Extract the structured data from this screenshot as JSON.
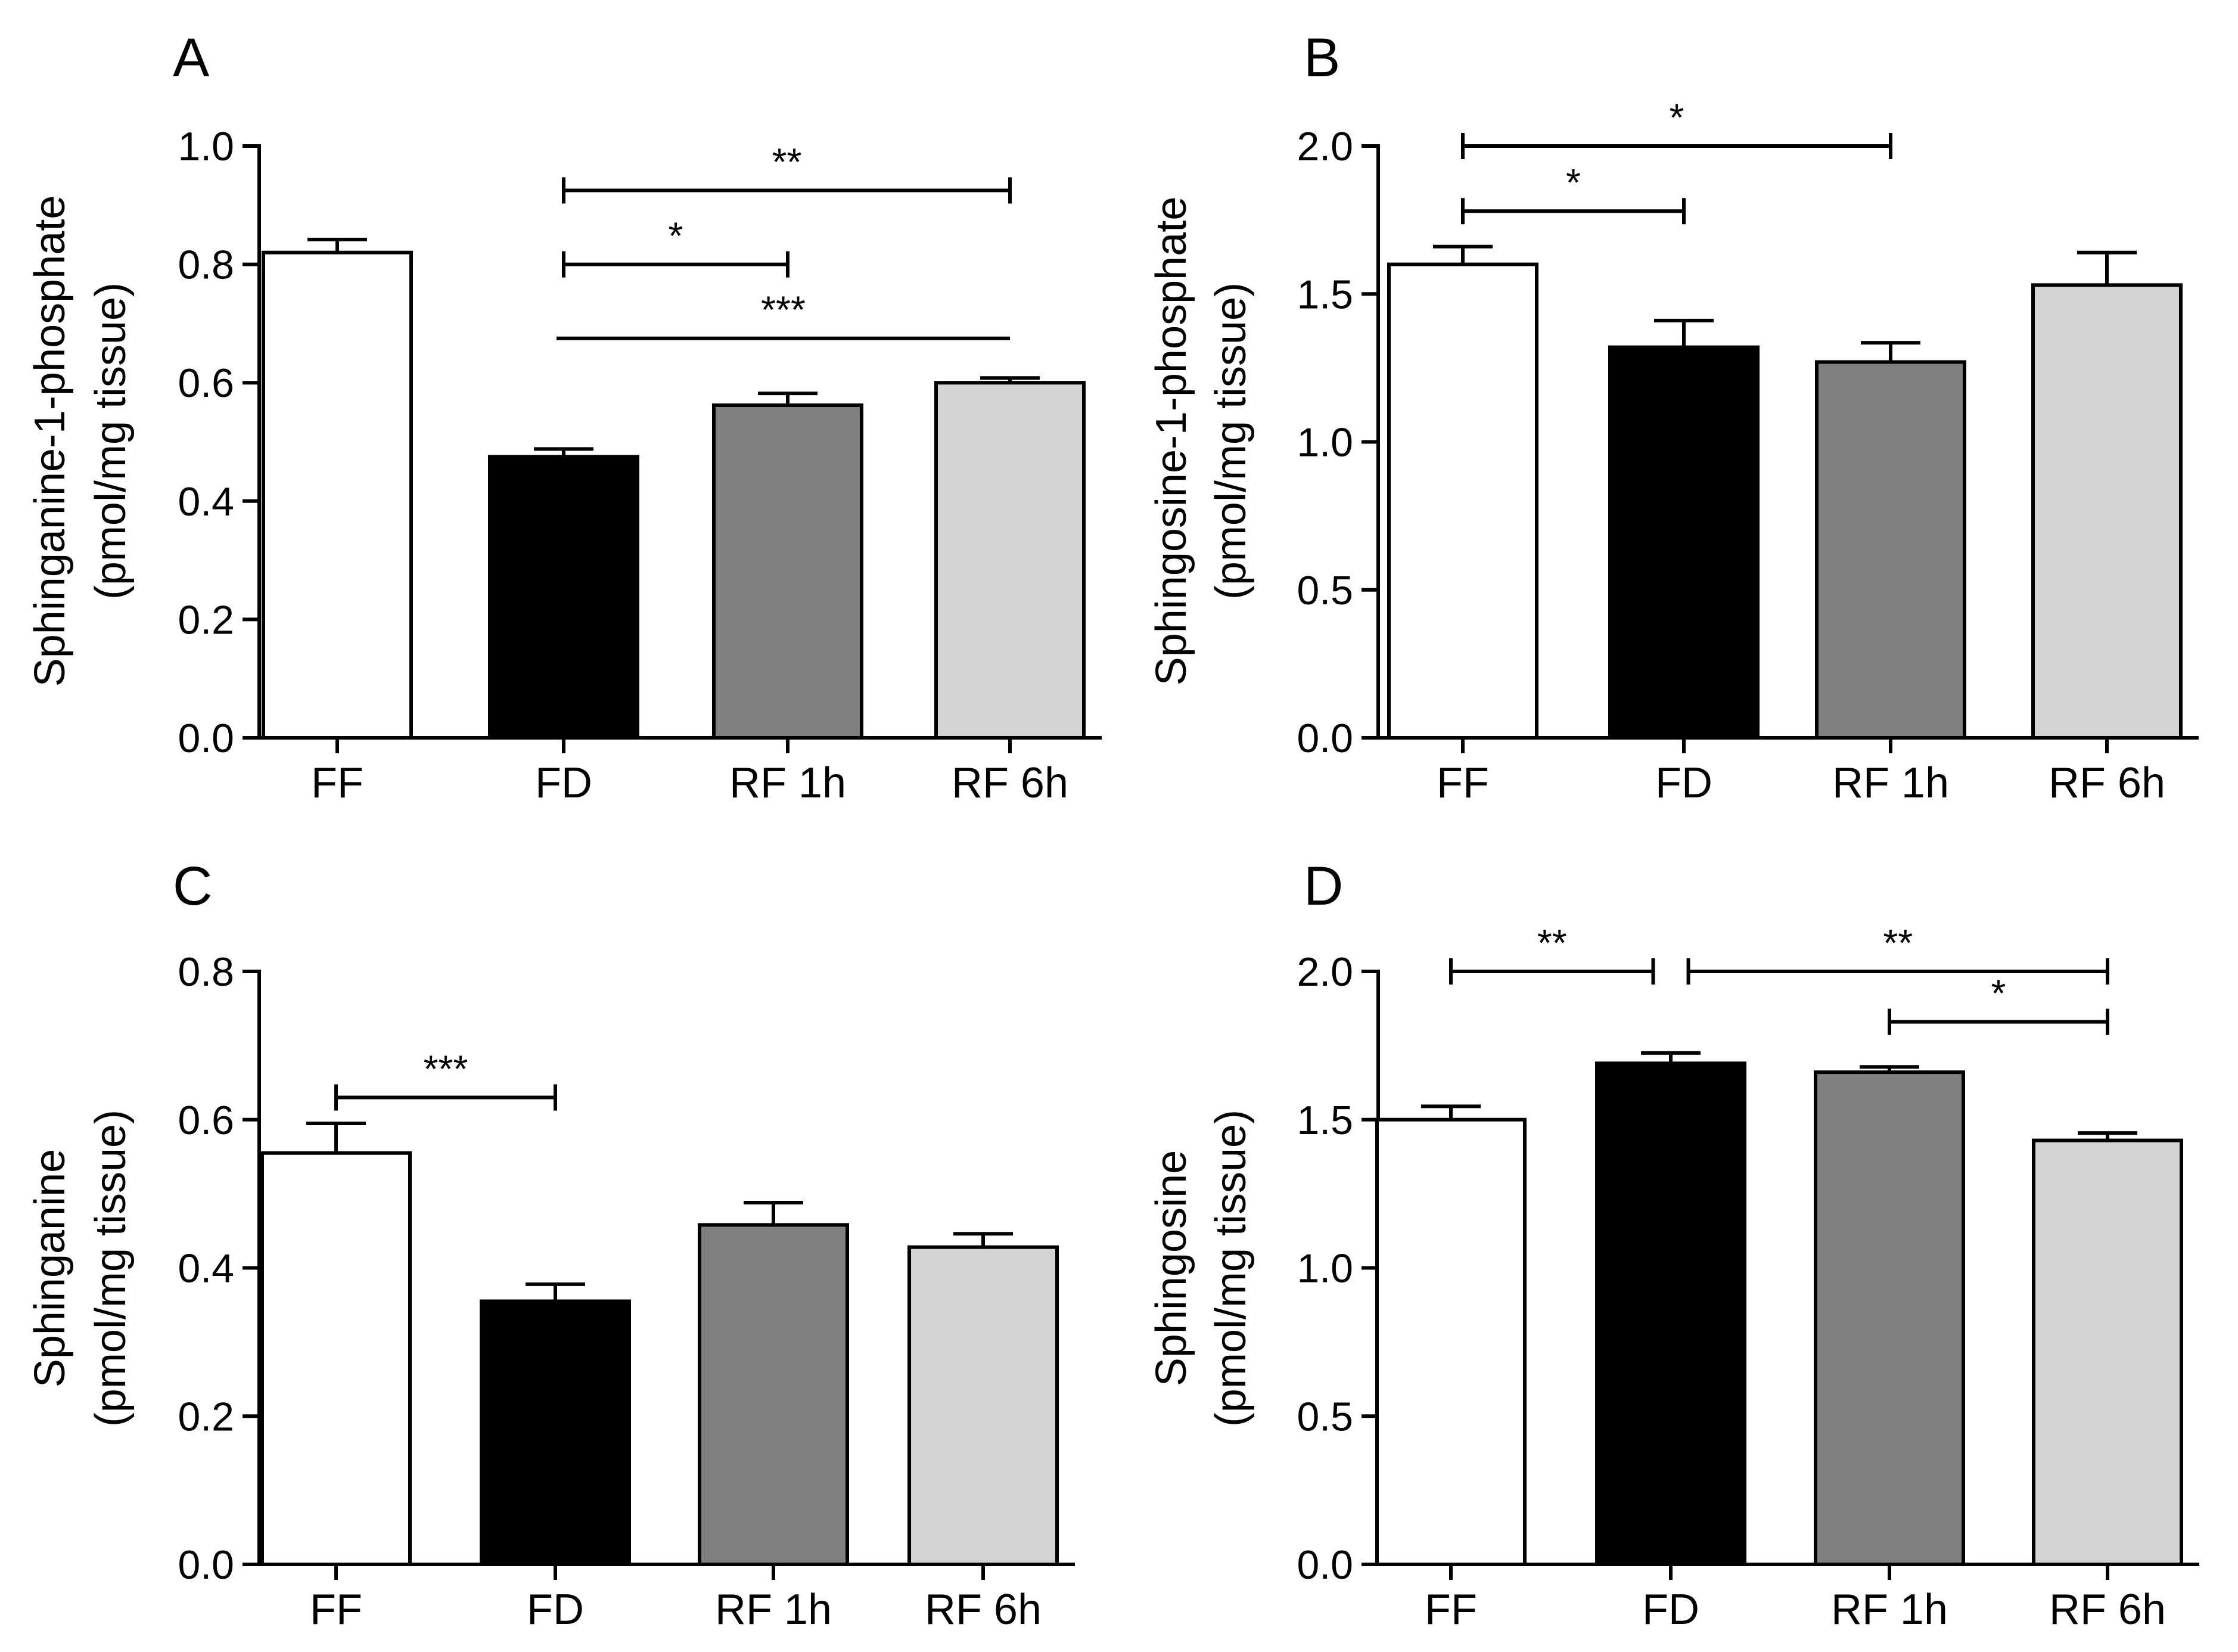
{
  "chart_data": [
    {
      "panel": "A",
      "type": "bar",
      "title": "",
      "xlabel": "",
      "ylabel_lines": [
        "Sphinganine-1-phosphate",
        "(pmol/mg tissue)"
      ],
      "categories": [
        "FF",
        "FD",
        "RF 1h",
        "RF 6h"
      ],
      "values": [
        0.82,
        0.475,
        0.562,
        0.6
      ],
      "errors": [
        0.022,
        0.013,
        0.02,
        0.008
      ],
      "bar_colors": [
        "#ffffff",
        "#000000",
        "#808080",
        "#d3d3d3"
      ],
      "ylim": [
        0,
        1.0
      ],
      "yticks": [
        0.0,
        0.2,
        0.4,
        0.6,
        0.8,
        1.0
      ],
      "ytick_labels": [
        "0.0",
        "0.2",
        "0.4",
        "0.6",
        "0.8",
        "1.0"
      ],
      "grid": false,
      "significance": [
        {
          "from": 1,
          "to": 3,
          "y": 0.925,
          "label": "**",
          "caps": true
        },
        {
          "from": 1,
          "to": 2,
          "y": 0.8,
          "label": "*",
          "caps": true
        },
        {
          "from": 1,
          "to": 3,
          "y": 0.675,
          "label": "***",
          "caps": false
        }
      ]
    },
    {
      "panel": "B",
      "type": "bar",
      "title": "",
      "xlabel": "",
      "ylabel_lines": [
        "Sphingosine-1-phosphate",
        "(pmol/mg tissue)"
      ],
      "categories": [
        "FF",
        "FD",
        "RF 1h",
        "RF 6h"
      ],
      "values": [
        1.6,
        1.32,
        1.27,
        1.53
      ],
      "errors": [
        0.06,
        0.09,
        0.065,
        0.11
      ],
      "bar_colors": [
        "#ffffff",
        "#000000",
        "#808080",
        "#d3d3d3"
      ],
      "ylim": [
        0,
        2.0
      ],
      "yticks": [
        0.0,
        0.5,
        1.0,
        1.5,
        2.0
      ],
      "ytick_labels": [
        "0.0",
        "0.5",
        "1.0",
        "1.5",
        "2.0"
      ],
      "grid": false,
      "significance": [
        {
          "from": 0,
          "to": 2,
          "y": 2.0,
          "label": "*",
          "caps": true
        },
        {
          "from": 0,
          "to": 1,
          "y": 1.78,
          "label": "*",
          "caps": true
        }
      ]
    },
    {
      "panel": "C",
      "type": "bar",
      "title": "",
      "xlabel": "",
      "ylabel_lines": [
        "Sphinganine",
        "(pmol/mg tissue)"
      ],
      "categories": [
        "FF",
        "FD",
        "RF 1h",
        "RF 6h"
      ],
      "values": [
        0.555,
        0.355,
        0.458,
        0.428
      ],
      "errors": [
        0.04,
        0.023,
        0.03,
        0.018
      ],
      "bar_colors": [
        "#ffffff",
        "#000000",
        "#808080",
        "#d3d3d3"
      ],
      "ylim": [
        0,
        0.8
      ],
      "yticks": [
        0.0,
        0.2,
        0.4,
        0.6,
        0.8
      ],
      "ytick_labels": [
        "0.0",
        "0.2",
        "0.4",
        "0.6",
        "0.8"
      ],
      "grid": false,
      "significance": [
        {
          "from": 0,
          "to": 1,
          "y": 0.63,
          "label": "***",
          "caps": true
        }
      ]
    },
    {
      "panel": "D",
      "type": "bar",
      "title": "",
      "xlabel": "",
      "ylabel_lines": [
        "Sphingosine",
        "(pmol/mg tissue)"
      ],
      "categories": [
        "FF",
        "FD",
        "RF 1h",
        "RF 6h"
      ],
      "values": [
        1.5,
        1.69,
        1.66,
        1.43
      ],
      "errors": [
        0.045,
        0.035,
        0.018,
        0.025
      ],
      "bar_colors": [
        "#ffffff",
        "#000000",
        "#808080",
        "#d3d3d3"
      ],
      "ylim": [
        0,
        2.0
      ],
      "yticks": [
        0.0,
        0.5,
        1.0,
        1.5,
        2.0
      ],
      "ytick_labels": [
        "0.0",
        "0.5",
        "1.0",
        "1.5",
        "2.0"
      ],
      "grid": false,
      "significance": [
        {
          "from": 0,
          "to": 0.92,
          "y": 2.0,
          "label": "**",
          "caps": true
        },
        {
          "from": 1,
          "to": 3,
          "y": 2.0,
          "label": "**",
          "caps": true,
          "from_offset": 0.08
        },
        {
          "from": 2,
          "to": 3,
          "y": 1.83,
          "label": "*",
          "caps": true
        }
      ]
    }
  ]
}
